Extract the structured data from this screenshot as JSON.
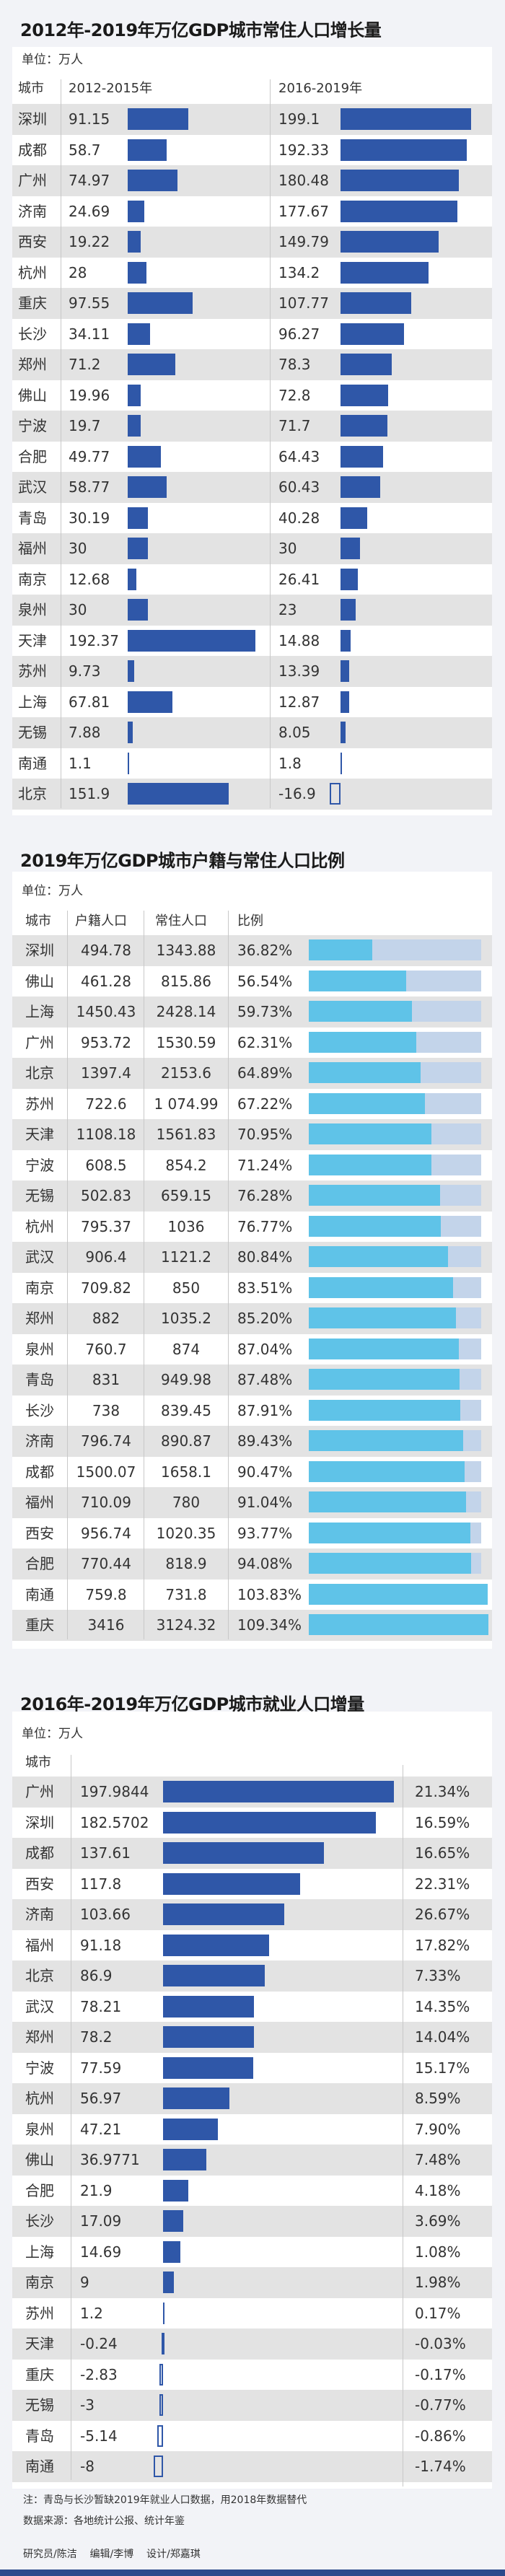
{
  "colors": {
    "bar": "#2f57a8",
    "ratio_fill": "#5fc3e8",
    "ratio_track": "#c3d4ea",
    "row_alt": "#e3e3e3",
    "footer": "#2c4a8c"
  },
  "chart_data": [
    {
      "type": "bar",
      "title": "2012年-2019年万亿GDP城市常住人口增长量",
      "unit": "单位：万人",
      "headers": {
        "city": "城市",
        "period1": "2012-2015年",
        "period2": "2016-2019年"
      },
      "categories": [
        "深圳",
        "成都",
        "广州",
        "济南",
        "西安",
        "杭州",
        "重庆",
        "长沙",
        "郑州",
        "佛山",
        "宁波",
        "合肥",
        "武汉",
        "青岛",
        "福州",
        "南京",
        "泉州",
        "天津",
        "苏州",
        "上海",
        "无锡",
        "南通",
        "北京"
      ],
      "series": [
        {
          "name": "2012-2015年",
          "values": [
            "91.15",
            "58.7",
            "74.97",
            "24.69",
            "19.22",
            "28",
            "97.55",
            "34.11",
            "71.2",
            "19.96",
            "19.7",
            "49.77",
            "58.77",
            "30.19",
            "30",
            "12.68",
            "30",
            "192.37",
            "9.73",
            "67.81",
            "7.88",
            "1.1",
            "151.9"
          ]
        },
        {
          "name": "2016-2019年",
          "values": [
            "199.1",
            "192.33",
            "180.48",
            "177.67",
            "149.79",
            "134.2",
            "107.77",
            "96.27",
            "78.3",
            "72.8",
            "71.7",
            "64.43",
            "60.43",
            "40.28",
            "30",
            "26.41",
            "23",
            "14.88",
            "13.39",
            "12.87",
            "8.05",
            "1.8",
            "-16.9"
          ]
        }
      ]
    },
    {
      "type": "table",
      "title": "2019年万亿GDP城市户籍与常住人口比例",
      "unit": "单位：万人",
      "headers": {
        "city": "城市",
        "huji": "户籍人口",
        "changzhu": "常住人口",
        "ratio": "比例"
      },
      "rows": [
        {
          "city": "深圳",
          "huji": "494.78",
          "changzhu": "1343.88",
          "ratio": "36.82%",
          "value": 36.82
        },
        {
          "city": "佛山",
          "huji": "461.28",
          "changzhu": "815.86",
          "ratio": "56.54%",
          "value": 56.54
        },
        {
          "city": "上海",
          "huji": "1450.43",
          "changzhu": "2428.14",
          "ratio": "59.73%",
          "value": 59.73
        },
        {
          "city": "广州",
          "huji": "953.72",
          "changzhu": "1530.59",
          "ratio": "62.31%",
          "value": 62.31
        },
        {
          "city": "北京",
          "huji": "1397.4",
          "changzhu": "2153.6",
          "ratio": "64.89%",
          "value": 64.89
        },
        {
          "city": "苏州",
          "huji": "722.6",
          "changzhu": "1 074.99",
          "ratio": "67.22%",
          "value": 67.22
        },
        {
          "city": "天津",
          "huji": "1108.18",
          "changzhu": "1561.83",
          "ratio": "70.95%",
          "value": 70.95
        },
        {
          "city": "宁波",
          "huji": "608.5",
          "changzhu": "854.2",
          "ratio": "71.24%",
          "value": 71.24
        },
        {
          "city": "无锡",
          "huji": "502.83",
          "changzhu": "659.15",
          "ratio": "76.28%",
          "value": 76.28
        },
        {
          "city": "杭州",
          "huji": "795.37",
          "changzhu": "1036",
          "ratio": "76.77%",
          "value": 76.77
        },
        {
          "city": "武汉",
          "huji": "906.4",
          "changzhu": "1121.2",
          "ratio": "80.84%",
          "value": 80.84
        },
        {
          "city": "南京",
          "huji": "709.82",
          "changzhu": "850",
          "ratio": "83.51%",
          "value": 83.51
        },
        {
          "city": "郑州",
          "huji": "882",
          "changzhu": "1035.2",
          "ratio": "85.20%",
          "value": 85.2
        },
        {
          "city": "泉州",
          "huji": "760.7",
          "changzhu": "874",
          "ratio": "87.04%",
          "value": 87.04
        },
        {
          "city": "青岛",
          "huji": "831",
          "changzhu": "949.98",
          "ratio": "87.48%",
          "value": 87.48
        },
        {
          "city": "长沙",
          "huji": "738",
          "changzhu": "839.45",
          "ratio": "87.91%",
          "value": 87.91
        },
        {
          "city": "济南",
          "huji": "796.74",
          "changzhu": "890.87",
          "ratio": "89.43%",
          "value": 89.43
        },
        {
          "city": "成都",
          "huji": "1500.07",
          "changzhu": "1658.1",
          "ratio": "90.47%",
          "value": 90.47
        },
        {
          "city": "福州",
          "huji": "710.09",
          "changzhu": "780",
          "ratio": "91.04%",
          "value": 91.04
        },
        {
          "city": "西安",
          "huji": "956.74",
          "changzhu": "1020.35",
          "ratio": "93.77%",
          "value": 93.77
        },
        {
          "city": "合肥",
          "huji": "770.44",
          "changzhu": "818.9",
          "ratio": "94.08%",
          "value": 94.08
        },
        {
          "city": "南通",
          "huji": "759.8",
          "changzhu": "731.8",
          "ratio": "103.83%",
          "value": 103.83
        },
        {
          "city": "重庆",
          "huji": "3416",
          "changzhu": "3124.32",
          "ratio": "109.34%",
          "value": 109.34
        }
      ]
    },
    {
      "type": "bar",
      "title": "2016年-2019年万亿GDP城市就业人口增量",
      "unit": "单位：万人",
      "headers": {
        "city": "城市"
      },
      "categories": [
        "广州",
        "深圳",
        "成都",
        "西安",
        "济南",
        "福州",
        "北京",
        "武汉",
        "郑州",
        "宁波",
        "杭州",
        "泉州",
        "佛山",
        "合肥",
        "长沙",
        "上海",
        "南京",
        "苏州",
        "天津",
        "重庆",
        "无锡",
        "青岛",
        "南通"
      ],
      "values": [
        "197.9844",
        "182.5702",
        "137.61",
        "117.8",
        "103.66",
        "91.18",
        "86.9",
        "78.21",
        "78.2",
        "77.59",
        "56.97",
        "47.21",
        "36.9771",
        "21.9",
        "17.09",
        "14.69",
        "9",
        "1.2",
        "-0.24",
        "-2.83",
        "-3",
        "-5.14",
        "-8"
      ],
      "growth": [
        "21.34%",
        "16.59%",
        "16.65%",
        "22.31%",
        "26.67%",
        "17.82%",
        "7.33%",
        "14.35%",
        "14.04%",
        "15.17%",
        "8.59%",
        "7.90%",
        "7.48%",
        "4.18%",
        "3.69%",
        "1.08%",
        "1.98%",
        "0.17%",
        "-0.03%",
        "-0.17%",
        "-0.77%",
        "-0.86%",
        "-1.74%"
      ]
    }
  ],
  "notes": {
    "note": "注：青岛与长沙暂缺2019年就业人口数据，用2018年数据替代",
    "source": "数据来源：各地统计公报、统计年鉴",
    "credits": "研究员/陈洁    编辑/李博    设计/郑嘉琪"
  }
}
